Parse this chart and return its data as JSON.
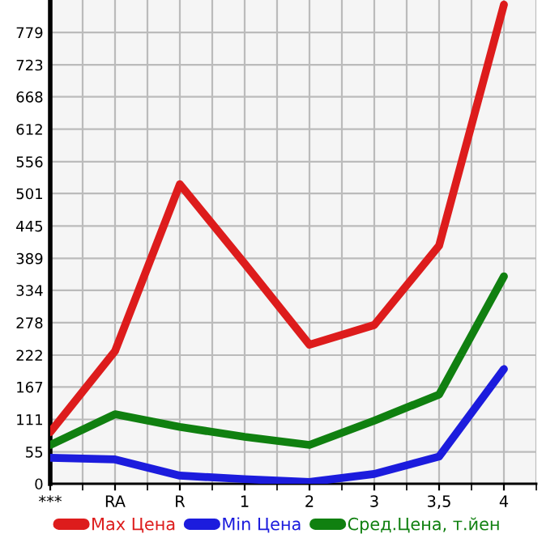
{
  "chart_data": {
    "type": "line",
    "categories": [
      "***",
      "RA",
      "R",
      "1",
      "2",
      "3",
      "3,5",
      "4"
    ],
    "series": [
      {
        "name": "Max Цена",
        "color": "#dd1c1c",
        "values": [
          89,
          229,
          517,
          380,
          240,
          274,
          411,
          827
        ]
      },
      {
        "name": "Min Цена",
        "color": "#1c1cdd",
        "values": [
          45,
          42,
          14,
          8,
          3,
          17,
          47,
          198
        ]
      },
      {
        "name": "Сред.Цена, т.йен",
        "color": "#108010",
        "values": [
          67,
          120,
          98,
          81,
          67,
          109,
          154,
          358
        ]
      }
    ],
    "ylim": [
      0,
      835
    ],
    "yticks": [
      0,
      55,
      111,
      167,
      222,
      278,
      334,
      389,
      445,
      501,
      556,
      612,
      668,
      723,
      779
    ],
    "grid": true,
    "legend": "bottom",
    "marker": "none",
    "line_style": "solid"
  }
}
